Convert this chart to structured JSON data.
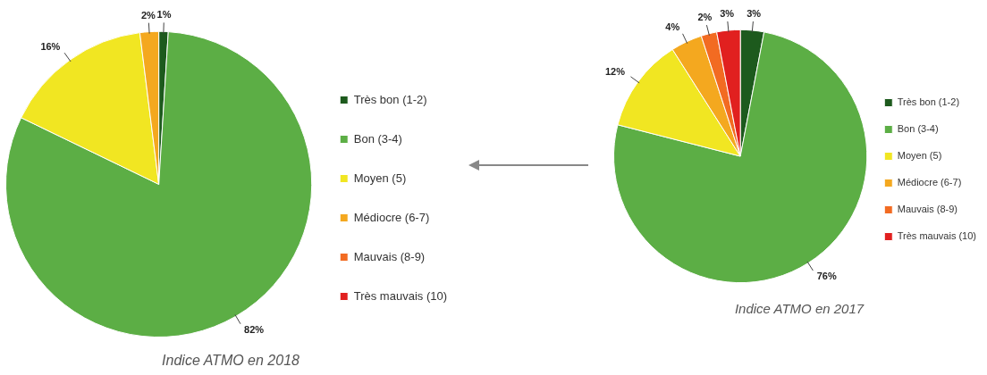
{
  "chart_data": [
    {
      "type": "pie",
      "title": "Indice ATMO en 2018",
      "categories": [
        "Très bon (1-2)",
        "Bon (3-4)",
        "Moyen (5)",
        "Médiocre (6-7)",
        "Mauvais (8-9)",
        "Très mauvais (10)"
      ],
      "values": [
        1,
        82,
        16,
        2,
        0,
        0
      ],
      "colors": [
        "#1d5a1d",
        "#5cae45",
        "#f1e622",
        "#f4a81f",
        "#f26b22",
        "#e1201f"
      ],
      "value_labels": [
        "1%",
        "82%",
        "16%",
        "2%",
        null,
        null
      ],
      "legend": "right"
    },
    {
      "type": "pie",
      "title": "Indice ATMO en 2017",
      "categories": [
        "Très bon (1-2)",
        "Bon (3-4)",
        "Moyen (5)",
        "Médiocre (6-7)",
        "Mauvais (8-9)",
        "Très mauvais (10)"
      ],
      "values": [
        3,
        76,
        12,
        4,
        2,
        3
      ],
      "colors": [
        "#1d5a1d",
        "#5cae45",
        "#f1e622",
        "#f4a81f",
        "#f26b22",
        "#e1201f"
      ],
      "value_labels": [
        "3%",
        "76%",
        "12%",
        "4%",
        "2%",
        "3%"
      ],
      "legend": "right"
    }
  ]
}
